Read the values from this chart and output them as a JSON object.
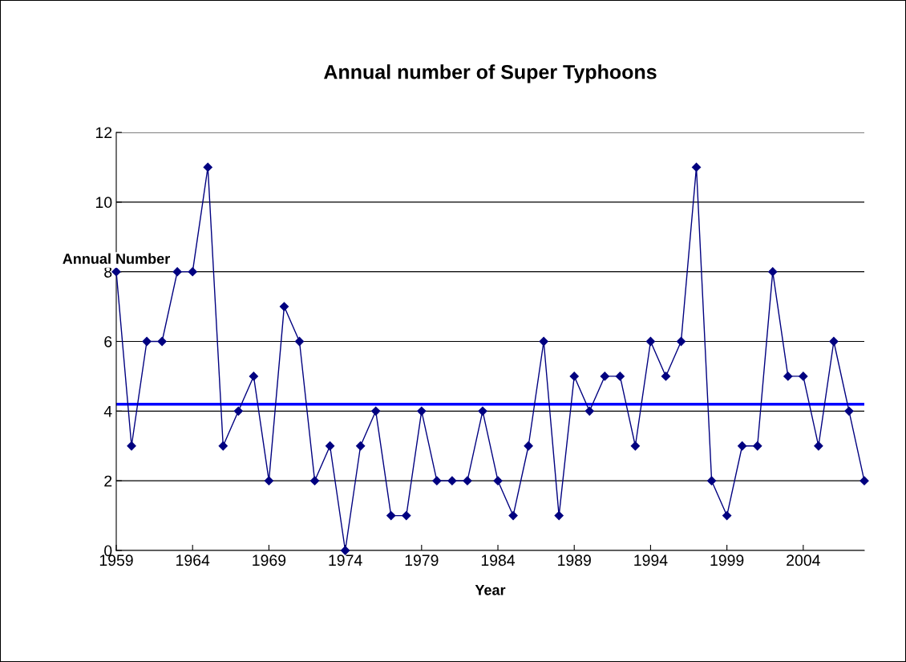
{
  "chart_data": {
    "type": "line",
    "title": "Annual number of Super Typhoons",
    "xlabel": "Year",
    "ylabel": "Annual Number",
    "x": [
      1959,
      1960,
      1961,
      1962,
      1963,
      1964,
      1965,
      1966,
      1967,
      1968,
      1969,
      1970,
      1971,
      1972,
      1973,
      1974,
      1975,
      1976,
      1977,
      1978,
      1979,
      1980,
      1981,
      1982,
      1983,
      1984,
      1985,
      1986,
      1987,
      1988,
      1989,
      1990,
      1991,
      1992,
      1993,
      1994,
      1995,
      1996,
      1997,
      1998,
      1999,
      2000,
      2001,
      2002,
      2003,
      2004,
      2005,
      2006,
      2007,
      2008
    ],
    "series": [
      {
        "color": "#000080",
        "values": [
          8,
          3,
          6,
          6,
          8,
          8,
          11,
          3,
          4,
          5,
          2,
          7,
          6,
          2,
          3,
          0,
          3,
          4,
          1,
          1,
          4,
          2,
          2,
          2,
          4,
          2,
          1,
          3,
          6,
          1,
          5,
          4,
          5,
          5,
          3,
          6,
          5,
          6,
          11,
          2,
          1,
          3,
          3,
          8,
          5,
          5,
          3,
          6,
          4,
          2
        ]
      }
    ],
    "xlim": [
      1959,
      2008
    ],
    "xticks": [
      1959,
      1964,
      1969,
      1974,
      1979,
      1984,
      1989,
      1994,
      1999,
      2004
    ],
    "ylim": [
      0,
      12
    ],
    "yticks": [
      0,
      2,
      4,
      6,
      8,
      10,
      12
    ],
    "ref_lines": [
      {
        "axis": "y",
        "value": 4.2,
        "color": "#0000ff"
      }
    ],
    "grid": "y",
    "marker": "diamond",
    "legend": false
  }
}
